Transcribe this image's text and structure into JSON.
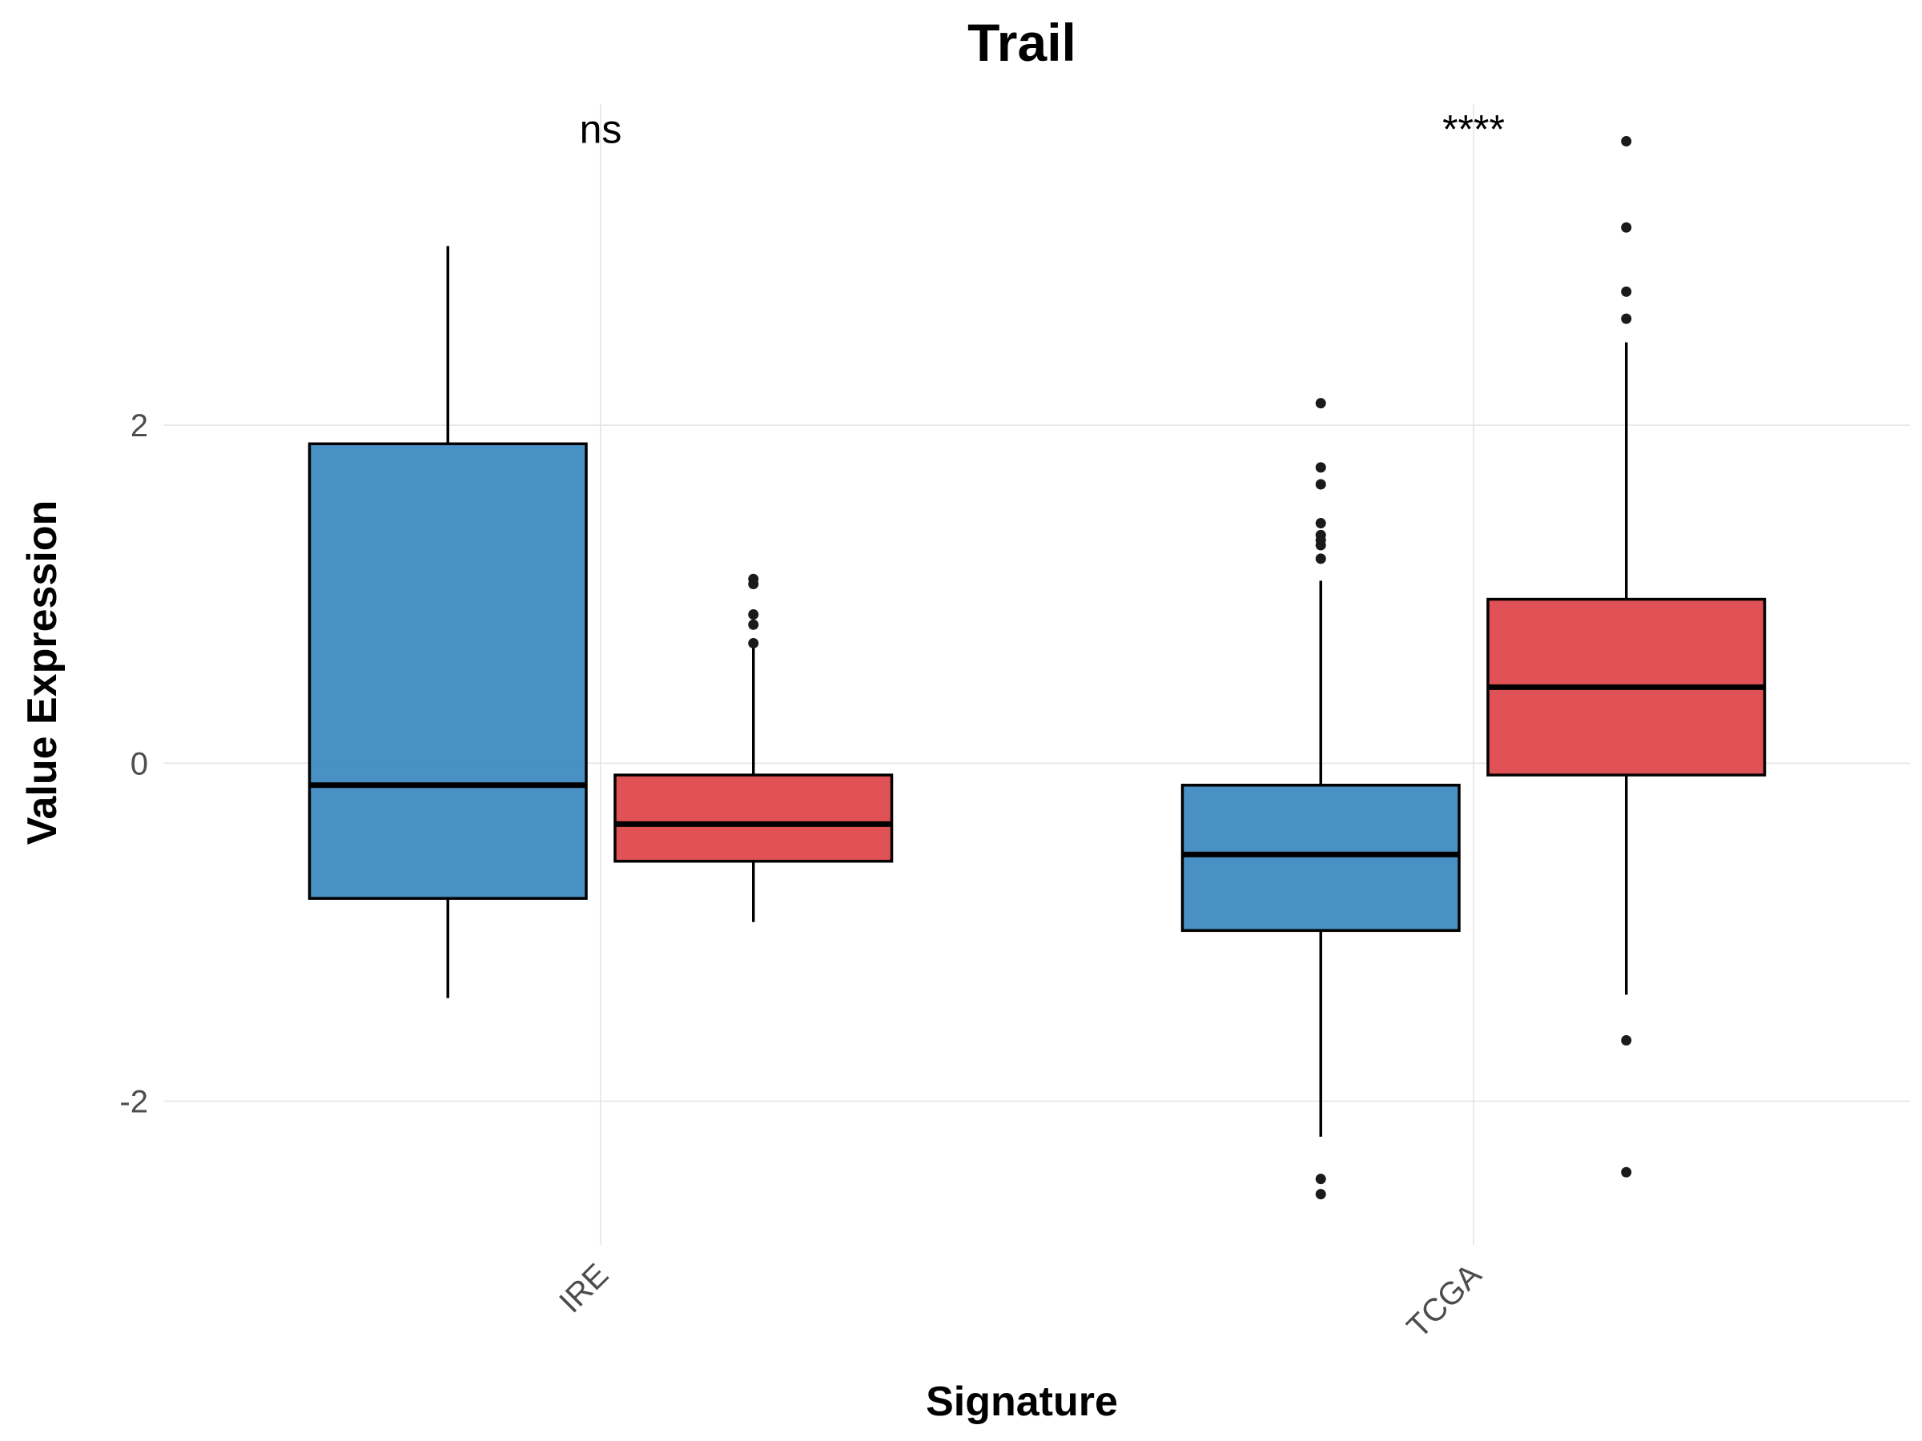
{
  "chart_data": {
    "type": "boxplot",
    "title": "Trail",
    "xlabel": "Signature",
    "ylabel": "Value Expression",
    "ylim": [
      -2.85,
      3.9
    ],
    "yticks": [
      -2,
      0,
      2
    ],
    "ytick_labels": [
      "-2",
      "0",
      "2"
    ],
    "grid": true,
    "legend": "none",
    "categories": [
      "IRE",
      "TCGA"
    ],
    "series": [
      {
        "color": "#3A87C0"
      },
      {
        "color": "#DE4349"
      }
    ],
    "boxes": [
      {
        "category": "IRE",
        "series": 0,
        "whisker_low": -1.39,
        "q1": -0.8,
        "median": -0.13,
        "q3": 1.89,
        "whisker_high": 3.06,
        "outliers": []
      },
      {
        "category": "IRE",
        "series": 1,
        "whisker_low": -0.94,
        "q1": -0.58,
        "median": -0.36,
        "q3": -0.07,
        "whisker_high": 0.69,
        "outliers": [
          1.09,
          1.06,
          0.88,
          0.82,
          0.71
        ]
      },
      {
        "category": "TCGA",
        "series": 0,
        "whisker_low": -2.21,
        "q1": -0.99,
        "median": -0.54,
        "q3": -0.13,
        "whisker_high": 1.08,
        "outliers": [
          2.13,
          1.75,
          1.65,
          1.42,
          1.35,
          1.32,
          1.29,
          1.21,
          -2.46,
          -2.55
        ]
      },
      {
        "category": "TCGA",
        "series": 1,
        "whisker_low": -1.37,
        "q1": -0.07,
        "median": 0.45,
        "q3": 0.97,
        "whisker_high": 2.49,
        "outliers": [
          3.68,
          3.17,
          2.79,
          2.63,
          -1.64,
          -2.42
        ]
      }
    ],
    "annotations": [
      {
        "category": "IRE",
        "text": "ns",
        "y": 3.75
      },
      {
        "category": "TCGA",
        "text": "****",
        "y": 3.75
      }
    ]
  }
}
